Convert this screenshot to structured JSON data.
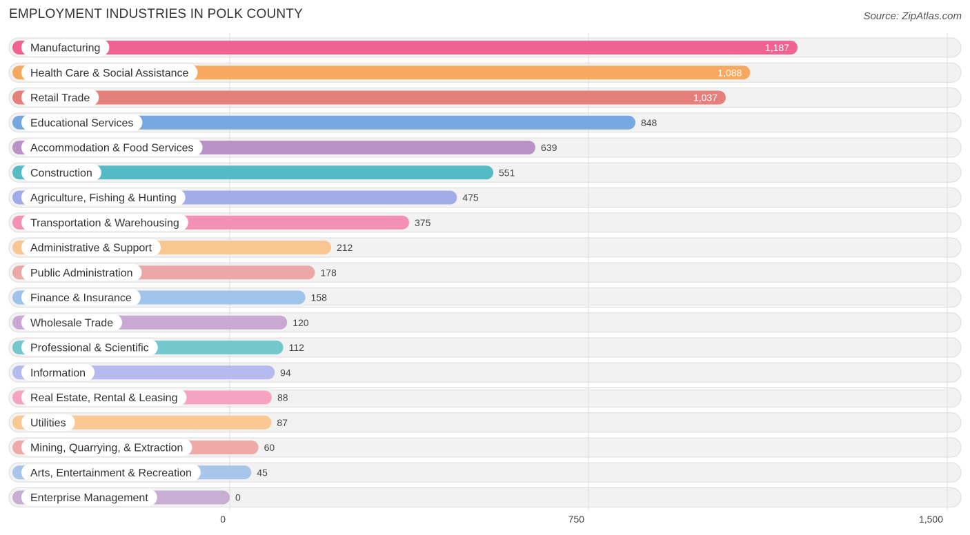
{
  "title": "EMPLOYMENT INDUSTRIES IN POLK COUNTY",
  "source": "Source: ZipAtlas.com",
  "chart_data": {
    "type": "bar",
    "orientation": "horizontal",
    "title": "EMPLOYMENT INDUSTRIES IN POLK COUNTY",
    "categories": [
      "Manufacturing",
      "Health Care & Social Assistance",
      "Retail Trade",
      "Educational Services",
      "Accommodation & Food Services",
      "Construction",
      "Agriculture, Fishing & Hunting",
      "Transportation & Warehousing",
      "Administrative & Support",
      "Public Administration",
      "Finance & Insurance",
      "Wholesale Trade",
      "Professional & Scientific",
      "Information",
      "Real Estate, Rental & Leasing",
      "Utilities",
      "Mining, Quarrying, & Extraction",
      "Arts, Entertainment & Recreation",
      "Enterprise Management"
    ],
    "values": [
      1187,
      1088,
      1037,
      848,
      639,
      551,
      475,
      375,
      212,
      178,
      158,
      120,
      112,
      94,
      88,
      87,
      60,
      45,
      0
    ],
    "value_labels": [
      "1,187",
      "1,088",
      "1,037",
      "848",
      "639",
      "551",
      "475",
      "375",
      "212",
      "178",
      "158",
      "120",
      "112",
      "94",
      "88",
      "87",
      "60",
      "45",
      "0"
    ],
    "colors": [
      "#f06292",
      "#f7a95f",
      "#e57f7b",
      "#76a7e0",
      "#b993c6",
      "#54bac4",
      "#a2ade8",
      "#f590b5",
      "#f9c591",
      "#eca8a6",
      "#9fc3ea",
      "#c9a9d3",
      "#73c8cd",
      "#b5bbee",
      "#f6a3c2",
      "#f9c893",
      "#efaaa8",
      "#a7c6ea",
      "#c9aed4"
    ],
    "xlim": [
      0,
      1500
    ],
    "xticks": [
      0,
      750,
      1500
    ],
    "xtick_labels": [
      "0",
      "750",
      "1,500"
    ],
    "grid": true
  }
}
